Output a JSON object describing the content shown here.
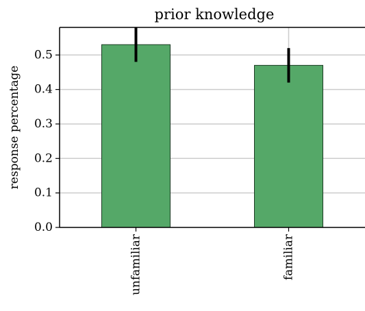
{
  "chart_data": {
    "type": "bar",
    "title": "prior knowledge",
    "xlabel": "",
    "ylabel": "response percentage",
    "categories": [
      "unfamiliar",
      "familiar"
    ],
    "values": [
      0.53,
      0.47
    ],
    "error_low": [
      0.48,
      0.42
    ],
    "error_high": [
      0.58,
      0.52
    ],
    "ylim": [
      0.0,
      0.58
    ],
    "yticks": [
      0.0,
      0.1,
      0.2,
      0.3,
      0.4,
      0.5
    ],
    "ytick_labels": [
      "0.0",
      "0.1",
      "0.2",
      "0.3",
      "0.4",
      "0.5"
    ],
    "grid": true,
    "colors": {
      "bar_fill": "#55a868",
      "bar_edge": "#1a3a22",
      "error_bar": "#000000",
      "grid": "#cccccc",
      "axis": "#000000"
    }
  }
}
